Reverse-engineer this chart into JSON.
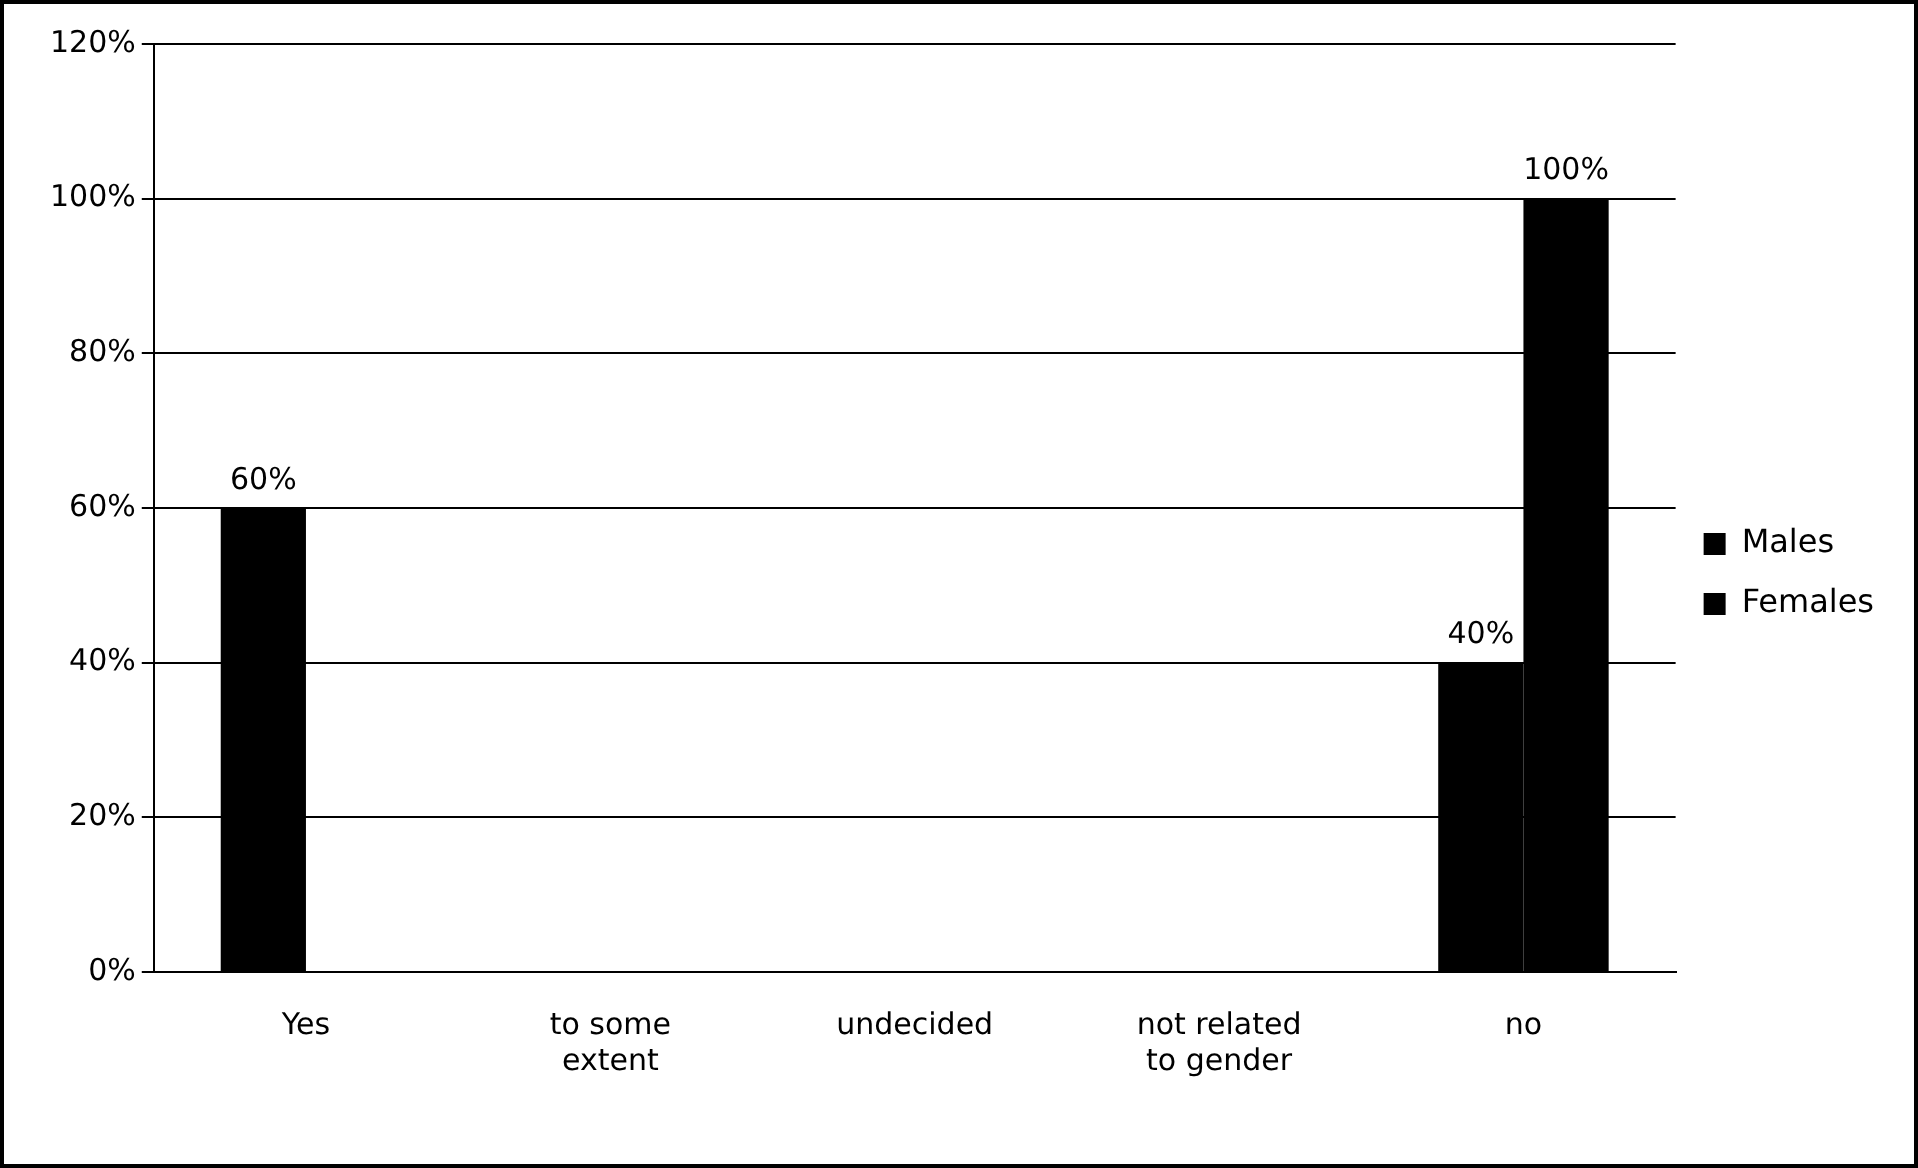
{
  "chart_data": {
    "type": "bar",
    "categories": [
      "Yes",
      "to some extent",
      "undecided",
      "not related to gender",
      "no"
    ],
    "series": [
      {
        "name": "Males",
        "color": "#000000",
        "values": [
          60,
          0,
          0,
          0,
          40
        ],
        "value_labels": [
          "60%",
          null,
          null,
          null,
          "40%"
        ]
      },
      {
        "name": "Females",
        "color": "#000000",
        "values": [
          0,
          0,
          0,
          0,
          100
        ],
        "value_labels": [
          null,
          null,
          null,
          null,
          "100%"
        ]
      }
    ],
    "ylim": [
      0,
      120
    ],
    "yticks": [
      {
        "value": 0,
        "label": "0%"
      },
      {
        "value": 20,
        "label": "20%"
      },
      {
        "value": 40,
        "label": "40%"
      },
      {
        "value": 60,
        "label": "60%"
      },
      {
        "value": 80,
        "label": "80%"
      },
      {
        "value": 100,
        "label": "100%"
      },
      {
        "value": 120,
        "label": "120%"
      }
    ],
    "grid": "y",
    "legend": "right"
  }
}
